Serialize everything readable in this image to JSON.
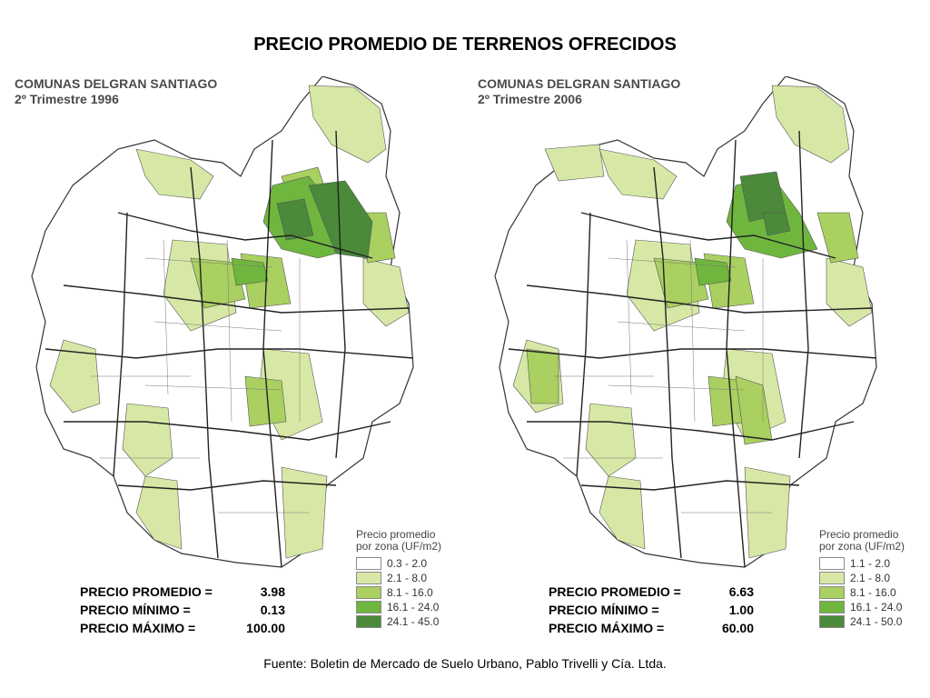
{
  "title": "PRECIO PROMEDIO DE TERRENOS OFRECIDOS",
  "source": "Fuente: Boletin de Mercado de Suelo Urbano, Pablo Trivelli y Cía. Ltda.",
  "legend_colors": [
    "#ffffff",
    "#d7e8a6",
    "#a9d060",
    "#6fb63e",
    "#4a8a3a"
  ],
  "panels": [
    {
      "title_line1": "COMUNAS DELGRAN SANTIAGO",
      "title_line2": "2º Trimestre 1996",
      "legend_title_line1": "Precio promedio",
      "legend_title_line2": "por zona (UF/m2)",
      "legend": [
        "0.3 - 2.0",
        "2.1 - 8.0",
        "8.1 - 16.0",
        "16.1 - 24.0",
        "24.1 - 45.0"
      ],
      "stats": [
        {
          "label": "PRECIO PROMEDIO =",
          "value": "3.98"
        },
        {
          "label": "PRECIO MÍNIMO =",
          "value": "0.13"
        },
        {
          "label": "PRECIO MÁXIMO =",
          "value": "100.00"
        }
      ]
    },
    {
      "title_line1": "COMUNAS DELGRAN SANTIAGO",
      "title_line2": "2º Trimestre 2006",
      "legend_title_line1": "Precio promedio",
      "legend_title_line2": "por zona (UF/m2)",
      "legend": [
        "1.1 - 2.0",
        "2.1 - 8.0",
        "8.1 - 16.0",
        "16.1 - 24.0",
        "24.1 - 50.0"
      ],
      "stats": [
        {
          "label": "PRECIO PROMEDIO =",
          "value": "6.63"
        },
        {
          "label": "PRECIO MÍNIMO =",
          "value": "1.00"
        },
        {
          "label": "PRECIO MÁXIMO =",
          "value": "60.00"
        }
      ]
    }
  ]
}
